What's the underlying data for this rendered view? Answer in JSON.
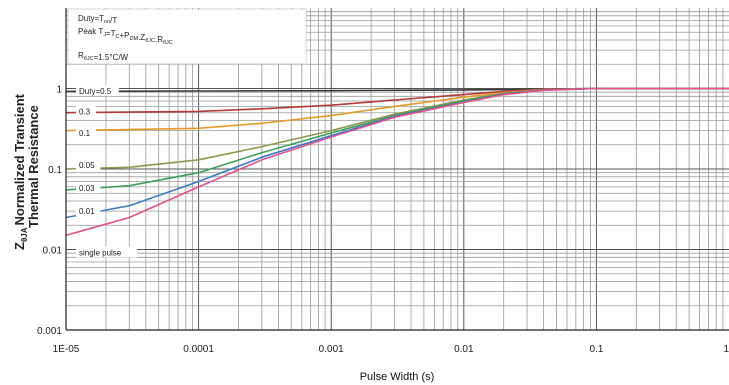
{
  "chart_data": {
    "type": "line",
    "xlabel": "Pulse Width (s)",
    "ylabel": {
      "prefix": "Z",
      "sub": "θJA",
      "line1": "Normalized Transient",
      "line2": "Thermal Resistance"
    },
    "x_scale": "log",
    "y_scale": "log",
    "xlim": [
      1e-05,
      1
    ],
    "ylim": [
      0.001,
      10
    ],
    "grid": true,
    "x_ticks": [
      {
        "value": 1e-05,
        "label": "1E-05"
      },
      {
        "value": 0.0001,
        "label": "0.0001"
      },
      {
        "value": 0.001,
        "label": "0.001"
      },
      {
        "value": 0.01,
        "label": "0.01"
      },
      {
        "value": 0.1,
        "label": "0.1"
      },
      {
        "value": 1,
        "label": "1"
      }
    ],
    "y_ticks": [
      {
        "value": 0.001,
        "label": "0.001"
      },
      {
        "value": 0.01,
        "label": "0.01"
      },
      {
        "value": 0.1,
        "label": "0.1"
      },
      {
        "value": 1,
        "label": "1"
      }
    ],
    "annotation_box": {
      "line1": {
        "main": "Duty=T",
        "sub": "on",
        "tail": "/T"
      },
      "line2": {
        "parts": [
          {
            "t": "Peak T",
            "s": false
          },
          {
            "t": "J",
            "s": true
          },
          {
            "t": "=T",
            "s": false
          },
          {
            "t": "C",
            "s": true
          },
          {
            "t": "+P",
            "s": false
          },
          {
            "t": "DM",
            "s": true
          },
          {
            "t": ".Z",
            "s": false
          },
          {
            "t": "θJC",
            "s": true
          },
          {
            "t": ".R",
            "s": false
          },
          {
            "t": "θJC",
            "s": true
          }
        ]
      },
      "line3": {
        "parts": [
          {
            "t": "R",
            "s": false
          },
          {
            "t": "θJC",
            "s": true
          },
          {
            "t": "=1.5°C/W",
            "s": false
          }
        ]
      }
    },
    "series": [
      {
        "name": "Duty=0.5",
        "color": "#3a3a3a",
        "label_y": 0.93,
        "x": [
          1e-05,
          0.0001,
          0.001,
          0.003,
          0.01,
          0.02,
          0.04,
          0.1,
          1
        ],
        "y": [
          0.92,
          0.93,
          0.94,
          0.95,
          0.96,
          0.97,
          0.985,
          1.0,
          1.0
        ]
      },
      {
        "name": "0.3",
        "color": "#b23a3a",
        "label_y": 0.52,
        "x": [
          1e-05,
          0.0001,
          0.0003,
          0.001,
          0.003,
          0.01,
          0.02,
          0.04,
          0.1,
          1
        ],
        "y": [
          0.5,
          0.52,
          0.56,
          0.62,
          0.72,
          0.84,
          0.92,
          0.98,
          1.0,
          1.0
        ]
      },
      {
        "name": "0.1",
        "color": "#e89a2a",
        "label_y": 0.28,
        "x": [
          1e-05,
          0.0001,
          0.0003,
          0.001,
          0.003,
          0.01,
          0.02,
          0.04,
          0.1,
          1
        ],
        "y": [
          0.3,
          0.32,
          0.37,
          0.46,
          0.6,
          0.78,
          0.89,
          0.97,
          1.0,
          1.0
        ]
      },
      {
        "name": "0.05",
        "color": "#8a9a4a",
        "label_y": 0.112,
        "x": [
          1e-05,
          3e-05,
          0.0001,
          0.0003,
          0.001,
          0.003,
          0.01,
          0.02,
          0.04,
          0.1,
          1
        ],
        "y": [
          0.1,
          0.105,
          0.13,
          0.19,
          0.3,
          0.48,
          0.72,
          0.87,
          0.96,
          1.0,
          1.0
        ]
      },
      {
        "name": "0.03",
        "color": "#3aa05a",
        "label_y": 0.058,
        "x": [
          1e-05,
          3e-05,
          0.0001,
          0.0003,
          0.001,
          0.003,
          0.01,
          0.02,
          0.04,
          0.1,
          1
        ],
        "y": [
          0.055,
          0.062,
          0.09,
          0.16,
          0.28,
          0.46,
          0.7,
          0.86,
          0.96,
          1.0,
          1.0
        ]
      },
      {
        "name": "0.01",
        "color": "#3a7ac8",
        "label_y": 0.03,
        "x": [
          1e-05,
          3e-05,
          0.0001,
          0.0003,
          0.001,
          0.003,
          0.01,
          0.02,
          0.04,
          0.1,
          1
        ],
        "y": [
          0.025,
          0.035,
          0.07,
          0.14,
          0.26,
          0.45,
          0.68,
          0.85,
          0.96,
          1.0,
          1.0
        ]
      },
      {
        "name": "single pulse",
        "color": "#e8508a",
        "label_y": 0.0092,
        "x": [
          1e-05,
          3e-05,
          0.0001,
          0.0003,
          0.001,
          0.003,
          0.01,
          0.02,
          0.04,
          0.1,
          1
        ],
        "y": [
          0.015,
          0.025,
          0.06,
          0.13,
          0.25,
          0.44,
          0.67,
          0.84,
          0.95,
          1.0,
          1.0
        ]
      }
    ]
  }
}
